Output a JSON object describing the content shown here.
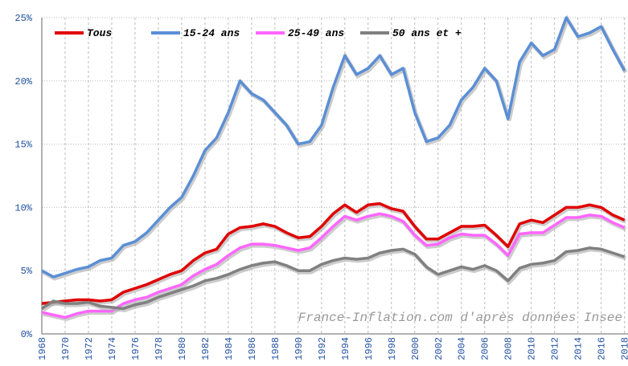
{
  "chart_data": {
    "type": "line",
    "x": [
      1968,
      1969,
      1970,
      1971,
      1972,
      1973,
      1974,
      1975,
      1976,
      1977,
      1978,
      1979,
      1980,
      1981,
      1982,
      1983,
      1984,
      1985,
      1986,
      1987,
      1988,
      1989,
      1990,
      1991,
      1992,
      1993,
      1994,
      1995,
      1996,
      1997,
      1998,
      1999,
      2000,
      2001,
      2002,
      2003,
      2004,
      2005,
      2006,
      2007,
      2008,
      2009,
      2010,
      2011,
      2012,
      2013,
      2014,
      2015,
      2016,
      2017,
      2018
    ],
    "series": [
      {
        "name": "Tous",
        "color": "#e00000",
        "values": [
          2.4,
          2.5,
          2.6,
          2.7,
          2.7,
          2.6,
          2.7,
          3.3,
          3.6,
          3.9,
          4.3,
          4.7,
          5.0,
          5.8,
          6.4,
          6.7,
          7.9,
          8.4,
          8.5,
          8.7,
          8.5,
          8.0,
          7.6,
          7.7,
          8.5,
          9.5,
          10.2,
          9.6,
          10.2,
          10.3,
          9.9,
          9.7,
          8.5,
          7.5,
          7.5,
          8.0,
          8.5,
          8.5,
          8.6,
          7.8,
          6.9,
          8.7,
          9.0,
          8.8,
          9.4,
          10.0,
          10.0,
          10.2,
          10.0,
          9.4,
          9.0
        ]
      },
      {
        "name": "15-24 ans",
        "color": "#5b8fd6",
        "values": [
          5.0,
          4.5,
          4.8,
          5.1,
          5.3,
          5.8,
          6.0,
          7.0,
          7.3,
          8.0,
          9.0,
          10.0,
          10.8,
          12.5,
          14.5,
          15.5,
          17.5,
          20.0,
          19.0,
          18.5,
          17.5,
          16.5,
          15.0,
          15.2,
          16.5,
          19.5,
          22.0,
          20.5,
          21.0,
          22.0,
          20.5,
          21.0,
          17.5,
          15.2,
          15.5,
          16.5,
          18.5,
          19.5,
          21.0,
          20.0,
          17.0,
          21.5,
          23.0,
          22.0,
          22.5,
          25.0,
          23.5,
          23.8,
          24.3,
          22.5,
          20.8
        ]
      },
      {
        "name": "25-49 ans",
        "color": "#ff66ff",
        "values": [
          1.7,
          1.5,
          1.3,
          1.6,
          1.8,
          1.8,
          1.8,
          2.4,
          2.7,
          2.9,
          3.3,
          3.6,
          3.9,
          4.6,
          5.1,
          5.5,
          6.2,
          6.8,
          7.1,
          7.1,
          7.0,
          6.8,
          6.6,
          6.8,
          7.6,
          8.5,
          9.3,
          9.0,
          9.3,
          9.5,
          9.3,
          8.9,
          7.8,
          7.0,
          7.1,
          7.6,
          7.9,
          7.8,
          7.8,
          7.1,
          6.2,
          7.9,
          8.0,
          8.0,
          8.6,
          9.2,
          9.2,
          9.4,
          9.3,
          8.8,
          8.4
        ]
      },
      {
        "name": "50 ans et +",
        "color": "#808080",
        "values": [
          2.0,
          2.6,
          2.4,
          2.4,
          2.5,
          2.2,
          2.1,
          2.0,
          2.3,
          2.5,
          2.9,
          3.2,
          3.5,
          3.8,
          4.2,
          4.4,
          4.7,
          5.1,
          5.4,
          5.6,
          5.7,
          5.4,
          5.0,
          5.0,
          5.5,
          5.8,
          6.0,
          5.9,
          6.0,
          6.4,
          6.6,
          6.7,
          6.3,
          5.3,
          4.7,
          5.0,
          5.3,
          5.1,
          5.4,
          5.0,
          4.2,
          5.2,
          5.5,
          5.6,
          5.8,
          6.5,
          6.6,
          6.8,
          6.7,
          6.4,
          6.1
        ]
      }
    ],
    "xlim": [
      1968,
      2018.3
    ],
    "xticks": [
      1968,
      1970,
      1972,
      1974,
      1976,
      1978,
      1980,
      1982,
      1984,
      1986,
      1988,
      1990,
      1992,
      1994,
      1996,
      1998,
      2000,
      2002,
      2004,
      2006,
      2008,
      2010,
      2012,
      2014,
      2016,
      2018
    ],
    "ylim": [
      0,
      25
    ],
    "yticks": [
      {
        "value": 0,
        "label": "0%"
      },
      {
        "value": 5,
        "label": "5%"
      },
      {
        "value": 10,
        "label": "10%"
      },
      {
        "value": 15,
        "label": "15%"
      },
      {
        "value": 20,
        "label": "20%"
      },
      {
        "value": 25,
        "label": "25%"
      }
    ],
    "grid": true,
    "legend": "top-left",
    "annotation": "France-Inflation.com d'après données Insee"
  }
}
